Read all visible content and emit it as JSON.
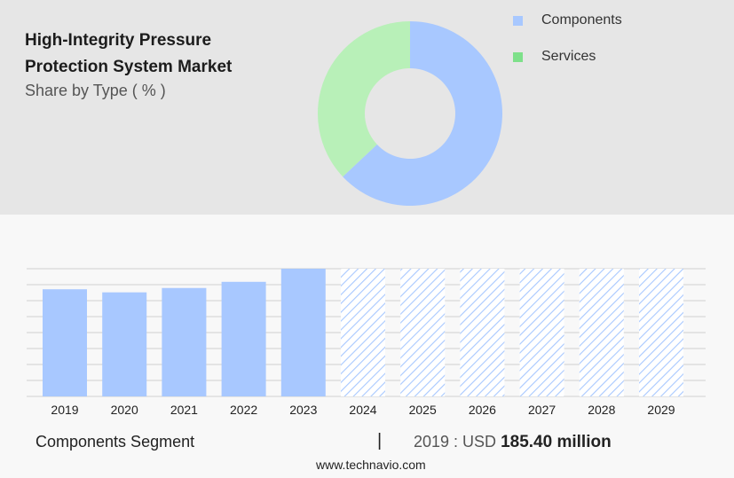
{
  "title": "High-Integrity Pressure Protection System Market",
  "subtitle": "Share by Type ( % )",
  "legend": [
    {
      "label": "Components",
      "color": "#a8c8ff"
    },
    {
      "label": "Services",
      "color": "#7ee08a"
    }
  ],
  "chart_data": [
    {
      "type": "pie",
      "style": "donut",
      "slices": [
        {
          "label": "Components",
          "value": 63,
          "color": "#a8c8ff"
        },
        {
          "label": "Services",
          "value": 37,
          "color": "#b8f0b8"
        }
      ]
    },
    {
      "type": "bar",
      "categories": [
        "2019",
        "2020",
        "2021",
        "2022",
        "2023",
        "2024",
        "2025",
        "2026",
        "2027",
        "2028",
        "2029"
      ],
      "values": [
        185.4,
        180.1,
        187.6,
        198.3,
        221.0,
        221.0,
        221.0,
        221.0,
        221.0,
        221.0,
        221.0
      ],
      "forecast_from_index": 5,
      "bar_color": "#a8c8ff",
      "ylim": [
        0,
        221.0
      ],
      "grid": true
    }
  ],
  "footer": {
    "segment": "Components Segment",
    "separator": "|",
    "value_prefix": "2019 : USD",
    "value_bold": "185.40 million",
    "website": "www.technavio.com"
  }
}
